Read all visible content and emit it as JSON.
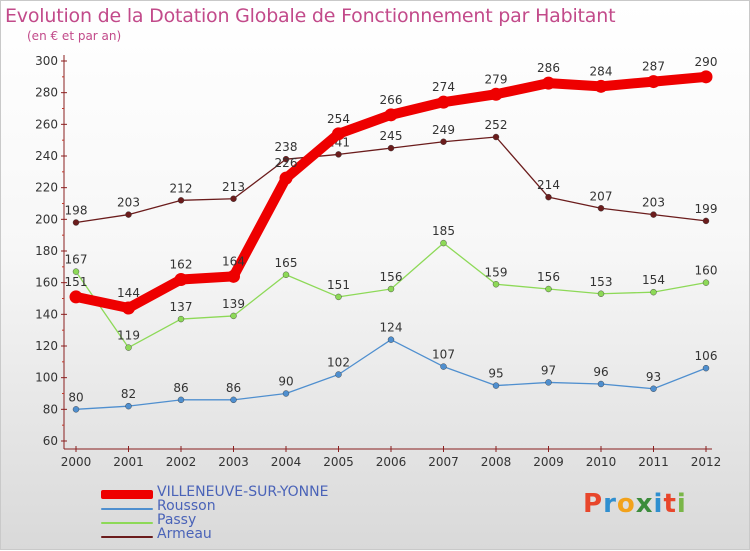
{
  "header": {
    "title": "Evolution de la Dotation Globale de Fonctionnement par Habitant",
    "subtitle": "(en € et par an)"
  },
  "logo": {
    "text": "Proxiti",
    "letters": [
      {
        "ch": "P",
        "color": "#e8462b"
      },
      {
        "ch": "r",
        "color": "#2f8fd0"
      },
      {
        "ch": "o",
        "color": "#f2a21b"
      },
      {
        "ch": "x",
        "color": "#3c8c3c"
      },
      {
        "ch": "i",
        "color": "#2f8fd0"
      },
      {
        "ch": "t",
        "color": "#e8462b"
      },
      {
        "ch": "i",
        "color": "#7ab648"
      }
    ]
  },
  "chart_data": {
    "type": "line",
    "title": "Evolution de la Dotation Globale de Fonctionnement par Habitant",
    "subtitle": "(en € et par an)",
    "xlabel": "",
    "ylabel": "",
    "ylim": [
      60,
      300
    ],
    "yticks": [
      60,
      80,
      100,
      120,
      140,
      160,
      180,
      200,
      220,
      240,
      260,
      280,
      300
    ],
    "categories": [
      "2000",
      "2001",
      "2002",
      "2003",
      "2004",
      "2005",
      "2006",
      "2007",
      "2008",
      "2009",
      "2010",
      "2011",
      "2012"
    ],
    "grid": false,
    "legend_position": "bottom-left",
    "series": [
      {
        "name": "VILLENEUVE-SUR-YONNE",
        "color": "#ee0000",
        "values": [
          151,
          144,
          162,
          164,
          226,
          254,
          266,
          274,
          279,
          286,
          284,
          287,
          290
        ]
      },
      {
        "name": "Rousson",
        "color": "#4f8fcf",
        "values": [
          80,
          82,
          86,
          86,
          90,
          102,
          124,
          107,
          95,
          97,
          96,
          93,
          106
        ]
      },
      {
        "name": "Passy",
        "color": "#8dd957",
        "values": [
          167,
          119,
          137,
          139,
          165,
          151,
          156,
          185,
          159,
          156,
          153,
          154,
          160
        ]
      },
      {
        "name": "Armeau",
        "color": "#6b1c1c",
        "values": [
          198,
          203,
          212,
          213,
          238,
          241,
          245,
          249,
          252,
          214,
          207,
          203,
          199
        ]
      }
    ]
  }
}
